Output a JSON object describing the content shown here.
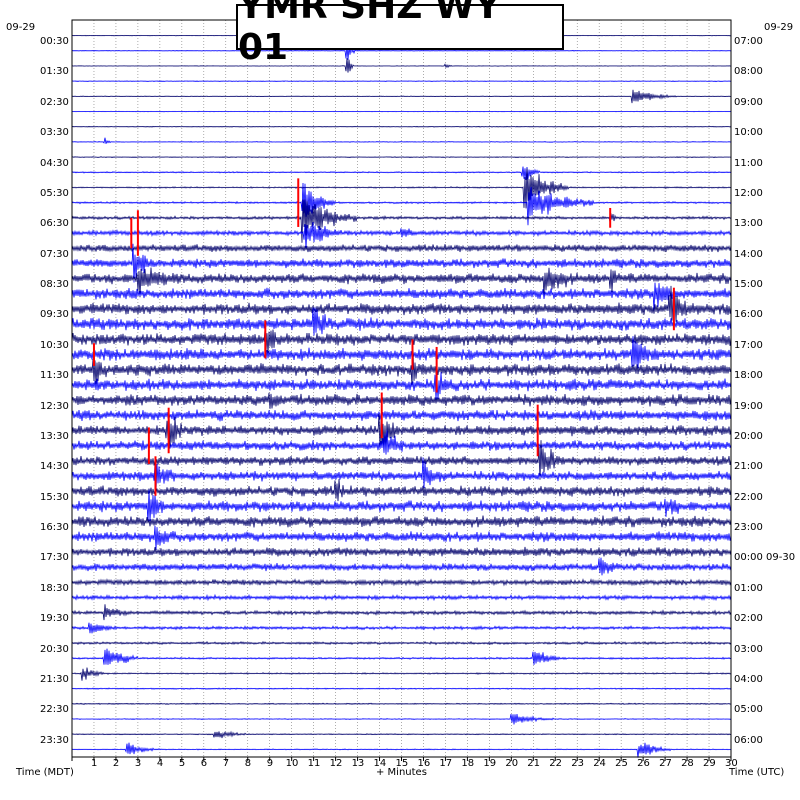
{
  "chart_data": {
    "type": "line",
    "title": "YMR SHZ WY 01",
    "date_left": "09-29",
    "date_right": "09-29",
    "xlabel_center": "+ Minutes",
    "xlabel_left": "Time (MDT)",
    "xlabel_right": "Time (UTC)",
    "x_ticks": [
      "1",
      "2",
      "3",
      "4",
      "5",
      "6",
      "7",
      "8",
      "9",
      "10",
      "11",
      "12",
      "13",
      "14",
      "15",
      "16",
      "17",
      "18",
      "19",
      "20",
      "21",
      "22",
      "23",
      "24",
      "25",
      "26",
      "27",
      "28",
      "29",
      "30"
    ],
    "xlim": [
      0,
      30
    ],
    "left_time_labels": [
      "00:30",
      "01:30",
      "02:30",
      "03:30",
      "04:30",
      "05:30",
      "06:30",
      "07:30",
      "08:30",
      "09:30",
      "10:30",
      "11:30",
      "12:30",
      "13:30",
      "14:30",
      "15:30",
      "16:30",
      "17:30",
      "18:30",
      "19:30",
      "20:30",
      "21:30",
      "22:30",
      "23:30"
    ],
    "right_time_labels": [
      "07:00",
      "08:00",
      "09:00",
      "10:00",
      "11:00",
      "12:00",
      "13:00",
      "14:00",
      "15:00",
      "16:00",
      "17:00",
      "18:00",
      "19:00",
      "20:00",
      "21:00",
      "22:00",
      "23:00",
      "00:00 09-30",
      "01:00",
      "02:00",
      "03:00",
      "04:00",
      "05:00",
      "06:00"
    ],
    "trace_count": 48,
    "trace_colors": [
      "#00006b",
      "#0000ff"
    ],
    "clip_color": "#ff0000",
    "noise_levels": [
      0.05,
      0.05,
      0.05,
      0.06,
      0.05,
      0.05,
      0.06,
      0.07,
      0.08,
      0.1,
      0.12,
      0.15,
      0.25,
      0.4,
      0.6,
      0.75,
      0.85,
      0.9,
      0.95,
      1.0,
      1.0,
      1.0,
      1.0,
      0.95,
      0.95,
      0.9,
      0.85,
      0.8,
      0.78,
      0.8,
      0.85,
      0.9,
      0.9,
      0.85,
      0.75,
      0.6,
      0.45,
      0.35,
      0.3,
      0.25,
      0.2,
      0.15,
      0.12,
      0.1,
      0.1,
      0.08,
      0.08,
      0.08
    ],
    "events": [
      {
        "trace": 1,
        "minute": 12.5,
        "amp": 1.2,
        "dur": 0.4
      },
      {
        "trace": 2,
        "minute": 12.5,
        "amp": 1.3,
        "dur": 0.3
      },
      {
        "trace": 2,
        "minute": 17.0,
        "amp": 0.3,
        "dur": 0.4
      },
      {
        "trace": 4,
        "minute": 25.5,
        "amp": 0.8,
        "dur": 2.0
      },
      {
        "trace": 7,
        "minute": 1.5,
        "amp": 0.3,
        "dur": 0.4
      },
      {
        "trace": 9,
        "minute": 20.5,
        "amp": 1.2,
        "dur": 0.8
      },
      {
        "trace": 10,
        "minute": 20.6,
        "amp": 2.2,
        "dur": 2.0
      },
      {
        "trace": 11,
        "minute": 20.8,
        "amp": 1.8,
        "dur": 3.0
      },
      {
        "trace": 11,
        "minute": 10.5,
        "amp": 2.0,
        "dur": 1.5
      },
      {
        "trace": 12,
        "minute": 10.5,
        "amp": 2.2,
        "dur": 2.5
      },
      {
        "trace": 13,
        "minute": 10.6,
        "amp": 1.5,
        "dur": 2.0
      },
      {
        "trace": 13,
        "minute": 15.0,
        "amp": 0.7,
        "dur": 1.0
      },
      {
        "trace": 12,
        "minute": 24.5,
        "amp": 1.0,
        "dur": 0.3
      },
      {
        "trace": 15,
        "minute": 2.8,
        "amp": 1.6,
        "dur": 1.2
      },
      {
        "trace": 16,
        "minute": 3.0,
        "amp": 1.8,
        "dur": 2.5
      },
      {
        "trace": 16,
        "minute": 21.5,
        "amp": 1.8,
        "dur": 2.0
      },
      {
        "trace": 16,
        "minute": 24.5,
        "amp": 1.2,
        "dur": 1.0
      },
      {
        "trace": 17,
        "minute": 26.5,
        "amp": 1.6,
        "dur": 1.5
      },
      {
        "trace": 18,
        "minute": 27.2,
        "amp": 2.0,
        "dur": 1.5
      },
      {
        "trace": 19,
        "minute": 11.0,
        "amp": 1.6,
        "dur": 1.5
      },
      {
        "trace": 20,
        "minute": 8.8,
        "amp": 1.7,
        "dur": 1.2
      },
      {
        "trace": 21,
        "minute": 25.5,
        "amp": 1.8,
        "dur": 2.0
      },
      {
        "trace": 22,
        "minute": 1.0,
        "amp": 1.8,
        "dur": 1.0
      },
      {
        "trace": 22,
        "minute": 15.5,
        "amp": 1.8,
        "dur": 0.8
      },
      {
        "trace": 23,
        "minute": 16.5,
        "amp": 2.0,
        "dur": 1.0
      },
      {
        "trace": 24,
        "minute": 9.0,
        "amp": 1.5,
        "dur": 1.0
      },
      {
        "trace": 26,
        "minute": 14.0,
        "amp": 2.0,
        "dur": 1.2
      },
      {
        "trace": 26,
        "minute": 4.3,
        "amp": 2.2,
        "dur": 1.2
      },
      {
        "trace": 27,
        "minute": 14.2,
        "amp": 1.6,
        "dur": 1.5
      },
      {
        "trace": 28,
        "minute": 21.3,
        "amp": 2.0,
        "dur": 1.5
      },
      {
        "trace": 29,
        "minute": 3.8,
        "amp": 1.6,
        "dur": 1.5
      },
      {
        "trace": 29,
        "minute": 16.0,
        "amp": 1.5,
        "dur": 1.5
      },
      {
        "trace": 30,
        "minute": 12.0,
        "amp": 1.2,
        "dur": 1.0
      },
      {
        "trace": 31,
        "minute": 3.5,
        "amp": 2.0,
        "dur": 1.0
      },
      {
        "trace": 31,
        "minute": 27.0,
        "amp": 1.2,
        "dur": 1.5
      },
      {
        "trace": 33,
        "minute": 3.8,
        "amp": 1.8,
        "dur": 1.0
      },
      {
        "trace": 35,
        "minute": 24.0,
        "amp": 1.0,
        "dur": 1.5
      },
      {
        "trace": 38,
        "minute": 1.5,
        "amp": 0.8,
        "dur": 1.5
      },
      {
        "trace": 39,
        "minute": 0.8,
        "amp": 0.7,
        "dur": 1.5
      },
      {
        "trace": 41,
        "minute": 1.5,
        "amp": 1.3,
        "dur": 1.5
      },
      {
        "trace": 41,
        "minute": 21.0,
        "amp": 1.0,
        "dur": 1.5
      },
      {
        "trace": 42,
        "minute": 0.5,
        "amp": 0.8,
        "dur": 1.0
      },
      {
        "trace": 45,
        "minute": 20.0,
        "amp": 0.6,
        "dur": 2.0
      },
      {
        "trace": 46,
        "minute": 6.5,
        "amp": 0.5,
        "dur": 1.5
      },
      {
        "trace": 47,
        "minute": 25.8,
        "amp": 0.8,
        "dur": 1.5
      },
      {
        "trace": 47,
        "minute": 2.5,
        "amp": 0.6,
        "dur": 1.5
      }
    ],
    "clips": [
      {
        "trace": 11,
        "minute": 10.3,
        "len": 3.2
      },
      {
        "trace": 12,
        "minute": 24.5,
        "len": 1.3
      },
      {
        "trace": 13,
        "minute": 2.7,
        "len": 2.0
      },
      {
        "trace": 13,
        "minute": 3.0,
        "len": 3.0
      },
      {
        "trace": 18,
        "minute": 27.4,
        "len": 2.8
      },
      {
        "trace": 20,
        "minute": 8.8,
        "len": 2.5
      },
      {
        "trace": 21,
        "minute": 15.5,
        "len": 2.0
      },
      {
        "trace": 21,
        "minute": 1.0,
        "len": 1.5
      },
      {
        "trace": 22,
        "minute": 16.6,
        "len": 3.0
      },
      {
        "trace": 25,
        "minute": 14.1,
        "len": 3.0
      },
      {
        "trace": 26,
        "minute": 4.4,
        "len": 3.0
      },
      {
        "trace": 26,
        "minute": 21.2,
        "len": 3.4
      },
      {
        "trace": 27,
        "minute": 3.5,
        "len": 2.4
      },
      {
        "trace": 29,
        "minute": 3.8,
        "len": 2.6
      }
    ]
  }
}
